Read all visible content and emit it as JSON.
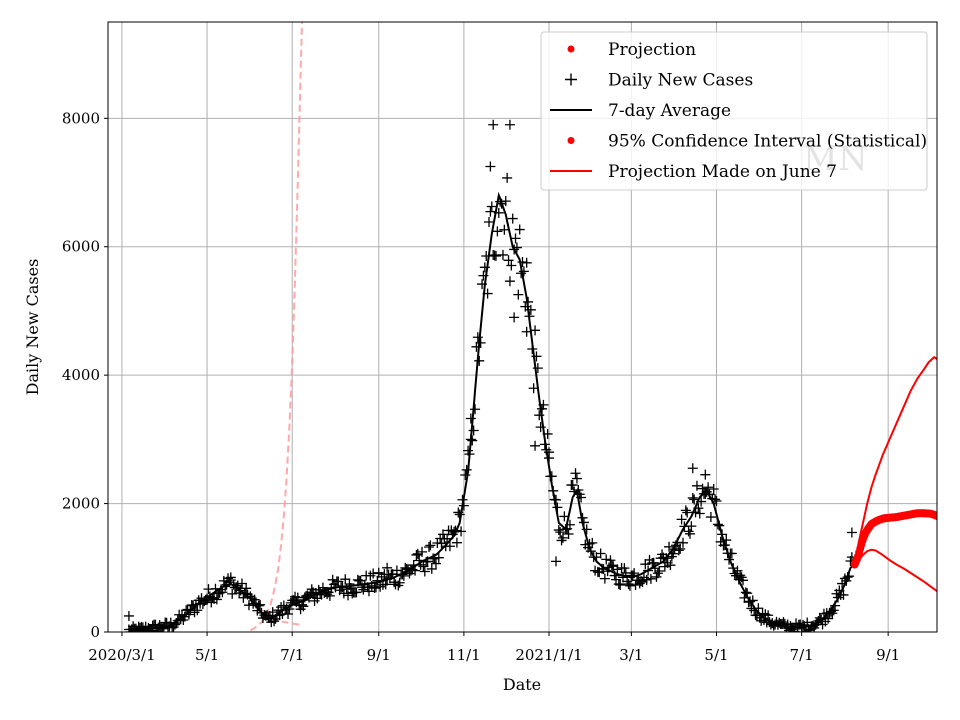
{
  "chart_data": {
    "type": "line",
    "xlabel": "Date",
    "ylabel": "Daily New Cases",
    "ylim": [
      0,
      9500
    ],
    "xlim_days": [
      -10,
      584
    ],
    "grid": true,
    "legend_position": "top-right",
    "x_ticks": [
      {
        "label": "2020/3/1",
        "day": 0
      },
      {
        "label": "5/1",
        "day": 61
      },
      {
        "label": "7/1",
        "day": 122
      },
      {
        "label": "9/1",
        "day": 184
      },
      {
        "label": "11/1",
        "day": 245
      },
      {
        "label": "2021/1/1",
        "day": 306
      },
      {
        "label": "3/1",
        "day": 365
      },
      {
        "label": "5/1",
        "day": 426
      },
      {
        "label": "7/1",
        "day": 487
      },
      {
        "label": "9/1",
        "day": 549
      }
    ],
    "y_ticks": [
      {
        "label": "0",
        "value": 0
      },
      {
        "label": "2000",
        "value": 2000
      },
      {
        "label": "4000",
        "value": 4000
      },
      {
        "label": "6000",
        "value": 6000
      },
      {
        "label": "8000",
        "value": 8000
      }
    ],
    "legend": [
      {
        "label": "Projection",
        "marker": "dot",
        "color": "#ff0000"
      },
      {
        "label": "Daily New Cases",
        "marker": "plus",
        "color": "#000000"
      },
      {
        "label": "7-day Average",
        "marker": "line",
        "color": "#000000"
      },
      {
        "label": "95% Confidence Interval (Statistical)",
        "marker": "dot",
        "color": "#ff0000"
      },
      {
        "label": "Projection Made on June 7",
        "marker": "line",
        "color": "#ff0000"
      }
    ],
    "watermark": "MN",
    "avg_anchors": [
      [
        5,
        20
      ],
      [
        15,
        40
      ],
      [
        25,
        70
      ],
      [
        35,
        100
      ],
      [
        45,
        250
      ],
      [
        55,
        450
      ],
      [
        65,
        600
      ],
      [
        72,
        700
      ],
      [
        78,
        750
      ],
      [
        85,
        650
      ],
      [
        92,
        520
      ],
      [
        98,
        350
      ],
      [
        104,
        200
      ],
      [
        110,
        250
      ],
      [
        116,
        350
      ],
      [
        122,
        420
      ],
      [
        128,
        470
      ],
      [
        135,
        550
      ],
      [
        145,
        650
      ],
      [
        155,
        700
      ],
      [
        165,
        720
      ],
      [
        175,
        750
      ],
      [
        185,
        780
      ],
      [
        195,
        850
      ],
      [
        205,
        950
      ],
      [
        215,
        1100
      ],
      [
        225,
        1200
      ],
      [
        232,
        1350
      ],
      [
        238,
        1500
      ],
      [
        242,
        1700
      ],
      [
        248,
        2500
      ],
      [
        252,
        3500
      ],
      [
        256,
        4500
      ],
      [
        260,
        5400
      ],
      [
        265,
        6200
      ],
      [
        270,
        6800
      ],
      [
        275,
        6500
      ],
      [
        280,
        6000
      ],
      [
        285,
        5800
      ],
      [
        290,
        5200
      ],
      [
        294,
        4500
      ],
      [
        298,
        3800
      ],
      [
        303,
        3000
      ],
      [
        308,
        2300
      ],
      [
        313,
        1700
      ],
      [
        318,
        1600
      ],
      [
        323,
        2100
      ],
      [
        326,
        2200
      ],
      [
        330,
        1700
      ],
      [
        335,
        1300
      ],
      [
        340,
        1100
      ],
      [
        345,
        1000
      ],
      [
        355,
        900
      ],
      [
        365,
        850
      ],
      [
        372,
        900
      ],
      [
        380,
        1000
      ],
      [
        388,
        1100
      ],
      [
        395,
        1300
      ],
      [
        402,
        1600
      ],
      [
        408,
        1800
      ],
      [
        414,
        2100
      ],
      [
        419,
        2200
      ],
      [
        424,
        2000
      ],
      [
        430,
        1500
      ],
      [
        436,
        1100
      ],
      [
        442,
        800
      ],
      [
        448,
        550
      ],
      [
        454,
        350
      ],
      [
        460,
        220
      ],
      [
        466,
        150
      ],
      [
        472,
        100
      ],
      [
        478,
        80
      ],
      [
        484,
        70
      ],
      [
        490,
        80
      ],
      [
        496,
        120
      ],
      [
        502,
        200
      ],
      [
        508,
        350
      ],
      [
        514,
        550
      ],
      [
        518,
        750
      ],
      [
        522,
        1000
      ],
      [
        525,
        1050
      ]
    ],
    "daily_cases_sample": [
      [
        5,
        250
      ],
      [
        60,
        500
      ],
      [
        78,
        850
      ],
      [
        130,
        400
      ],
      [
        190,
        1000
      ],
      [
        250,
        3000
      ],
      [
        264,
        7250
      ],
      [
        266,
        7900
      ],
      [
        278,
        7900
      ],
      [
        281,
        4900
      ],
      [
        290,
        5750
      ],
      [
        296,
        2900
      ],
      [
        306,
        2800
      ],
      [
        311,
        1100
      ],
      [
        409,
        2550
      ],
      [
        418,
        2450
      ],
      [
        523,
        1550
      ]
    ],
    "projection_center": [
      [
        525,
        1050
      ],
      [
        527,
        1150
      ],
      [
        529,
        1300
      ],
      [
        531,
        1450
      ],
      [
        533,
        1550
      ],
      [
        535,
        1620
      ],
      [
        537,
        1680
      ],
      [
        540,
        1720
      ],
      [
        543,
        1750
      ],
      [
        546,
        1770
      ],
      [
        550,
        1780
      ],
      [
        555,
        1790
      ],
      [
        560,
        1810
      ],
      [
        565,
        1830
      ],
      [
        570,
        1850
      ],
      [
        575,
        1850
      ],
      [
        580,
        1840
      ],
      [
        585,
        1800
      ],
      [
        590,
        1720
      ],
      [
        595,
        1600
      ],
      [
        600,
        1480
      ],
      [
        605,
        1380
      ],
      [
        610,
        1300
      ],
      [
        614,
        1230
      ]
    ],
    "projection_upper": [
      [
        525,
        1050
      ],
      [
        528,
        1400
      ],
      [
        531,
        1700
      ],
      [
        534,
        2000
      ],
      [
        537,
        2250
      ],
      [
        540,
        2450
      ],
      [
        545,
        2750
      ],
      [
        550,
        3000
      ],
      [
        555,
        3250
      ],
      [
        560,
        3500
      ],
      [
        565,
        3750
      ],
      [
        570,
        3950
      ],
      [
        575,
        4100
      ],
      [
        578,
        4200
      ],
      [
        582,
        4280
      ],
      [
        586,
        4220
      ],
      [
        590,
        4200
      ],
      [
        595,
        4190
      ],
      [
        600,
        4170
      ],
      [
        605,
        4150
      ]
    ],
    "projection_lower": [
      [
        525,
        1050
      ],
      [
        528,
        1120
      ],
      [
        531,
        1200
      ],
      [
        534,
        1260
      ],
      [
        537,
        1280
      ],
      [
        540,
        1270
      ],
      [
        545,
        1200
      ],
      [
        550,
        1120
      ],
      [
        555,
        1050
      ],
      [
        560,
        990
      ],
      [
        565,
        920
      ],
      [
        570,
        850
      ],
      [
        575,
        780
      ],
      [
        580,
        700
      ],
      [
        585,
        620
      ],
      [
        590,
        550
      ],
      [
        595,
        480
      ],
      [
        600,
        420
      ],
      [
        605,
        360
      ]
    ],
    "june7_projection": [
      [
        85,
        -50
      ],
      [
        90,
        0
      ],
      [
        95,
        60
      ],
      [
        100,
        150
      ],
      [
        103,
        250
      ],
      [
        106,
        400
      ],
      [
        108,
        550
      ],
      [
        110,
        750
      ],
      [
        112,
        1000
      ],
      [
        114,
        1350
      ],
      [
        116,
        1800
      ],
      [
        118,
        2400
      ],
      [
        120,
        3200
      ],
      [
        122,
        4200
      ],
      [
        124,
        5500
      ],
      [
        126,
        7000
      ],
      [
        128,
        8700
      ],
      [
        129,
        9500
      ]
    ],
    "june7_lower": [
      [
        100,
        300
      ],
      [
        105,
        240
      ],
      [
        110,
        190
      ],
      [
        115,
        160
      ],
      [
        120,
        140
      ],
      [
        125,
        120
      ],
      [
        130,
        110
      ]
    ]
  }
}
